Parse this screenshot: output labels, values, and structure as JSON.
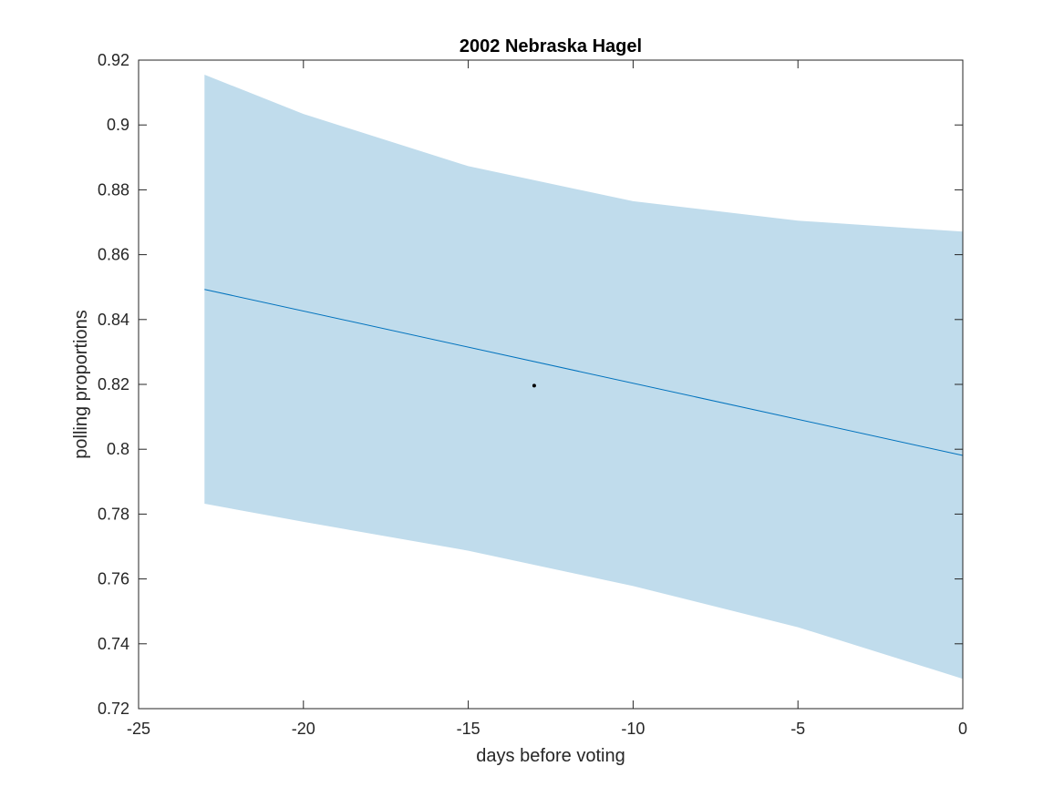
{
  "chart_data": {
    "type": "line",
    "title": "2002 Nebraska Hagel",
    "xlabel": "days before voting",
    "ylabel": "polling proportions",
    "xlim": [
      -25,
      0
    ],
    "ylim": [
      0.72,
      0.92
    ],
    "x_ticks": [
      -25,
      -20,
      -15,
      -10,
      -5,
      0
    ],
    "x_tick_labels": [
      "-25",
      "-20",
      "-15",
      "-10",
      "-5",
      "0"
    ],
    "y_ticks": [
      0.72,
      0.74,
      0.76,
      0.78,
      0.8,
      0.82,
      0.84,
      0.86,
      0.88,
      0.9,
      0.92
    ],
    "y_tick_labels": [
      "0.72",
      "0.74",
      "0.76",
      "0.78",
      "0.8",
      "0.82",
      "0.84",
      "0.86",
      "0.88",
      "0.9",
      "0.92"
    ],
    "grid": false,
    "colors": {
      "band": "#c0dcec",
      "line": "#0072bd",
      "point": "#000000",
      "axes": "#262626"
    },
    "band": {
      "x": [
        -23,
        -20,
        -15,
        -10,
        -5,
        0
      ],
      "upper": [
        0.9155,
        0.9034,
        0.8873,
        0.8765,
        0.8705,
        0.8671
      ],
      "lower": [
        0.7832,
        0.7776,
        0.7687,
        0.7578,
        0.7451,
        0.7292
      ]
    },
    "series": [
      {
        "x": [
          -23,
          0
        ],
        "values": [
          0.8493,
          0.7981
        ]
      }
    ],
    "points": [
      {
        "x": -13,
        "y": 0.8196
      }
    ]
  }
}
